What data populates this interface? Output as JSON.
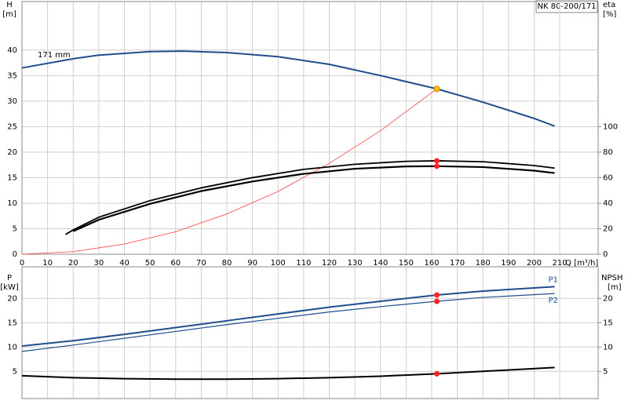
{
  "chart_data": [
    {
      "type": "line",
      "title": "NK 80-200/171",
      "annotation": "171 mm",
      "ylabel": "H",
      "yunit": "[m]",
      "y2label": "eta",
      "y2unit": "[%]",
      "xlabel": "Q [m³/h]",
      "xlim": [
        0,
        225
      ],
      "xticks": [
        0,
        10,
        20,
        30,
        40,
        50,
        60,
        70,
        80,
        90,
        100,
        110,
        120,
        130,
        140,
        150,
        160,
        170,
        180,
        190,
        200,
        210
      ],
      "ylim": [
        0,
        49.5
      ],
      "yticks": [
        0,
        5,
        10,
        15,
        20,
        25,
        30,
        35,
        40
      ],
      "y2lim": [
        0,
        198
      ],
      "y2ticks": [
        0,
        20,
        40,
        60,
        80,
        100
      ],
      "grid": true,
      "xtick_labels": true,
      "series": [
        {
          "color": "#1f4e8c",
          "line_width": 2,
          "axis": "y",
          "x": [
            0,
            20,
            30,
            50,
            63,
            80,
            100,
            120,
            140,
            162,
            180,
            200,
            208
          ],
          "values": [
            36.5,
            38.3,
            39,
            39.7,
            39.8,
            39.5,
            38.7,
            37.2,
            35,
            32.4,
            29.8,
            26.6,
            25.1
          ]
        },
        {
          "color": "#ff4040",
          "line_width": 0.8,
          "axis": "y",
          "x": [
            0,
            20,
            40,
            60,
            80,
            100,
            120,
            140,
            162
          ],
          "values": [
            0,
            0.5,
            2,
            4.4,
            7.9,
            12.3,
            17.8,
            24.2,
            32.4
          ]
        },
        {
          "color": "#000000",
          "line_width": 1.8,
          "axis": "y2",
          "x": [
            17,
            20,
            30,
            50,
            70,
            90,
            110,
            130,
            150,
            162,
            180,
            200,
            208
          ],
          "values": [
            15.5,
            19,
            29,
            42,
            52,
            60,
            66.5,
            70.5,
            72.8,
            73.2,
            72.5,
            69.5,
            67.5
          ]
        },
        {
          "color": "#000000",
          "line_width": 2.2,
          "axis": "y2",
          "x": [
            20,
            30,
            50,
            70,
            90,
            110,
            130,
            150,
            162,
            180,
            200,
            208
          ],
          "values": [
            18,
            27,
            39.5,
            49.5,
            57,
            63,
            67,
            68.8,
            69,
            68.3,
            65.5,
            63.6
          ]
        }
      ],
      "markers": [
        {
          "x": 162,
          "y": 32.4,
          "color": "#f7c300",
          "axis": "y"
        },
        {
          "x": 162,
          "y": 73.2,
          "color": "#ff2020",
          "axis": "y2"
        },
        {
          "x": 162,
          "y": 69,
          "color": "#ff2020",
          "axis": "y2"
        }
      ]
    },
    {
      "type": "line",
      "ylabel": "P",
      "yunit": "[kW]",
      "y2label": "NPSH",
      "y2unit": "[m]",
      "xlim": [
        0,
        225
      ],
      "xticks": [
        0,
        10,
        20,
        30,
        40,
        50,
        60,
        70,
        80,
        90,
        100,
        110,
        120,
        130,
        140,
        150,
        160,
        170,
        180,
        190,
        200,
        210
      ],
      "ylim": [
        -0.6,
        26.5
      ],
      "yticks": [
        5,
        10,
        15,
        20
      ],
      "y2lim": [
        -0.6,
        26.5
      ],
      "y2ticks": [
        5,
        10,
        15,
        20
      ],
      "grid": true,
      "xtick_labels": false,
      "series": [
        {
          "name": "P1",
          "color": "#1f4e8c",
          "line_width": 2,
          "axis": "y",
          "x": [
            0,
            20,
            40,
            60,
            80,
            100,
            120,
            140,
            162,
            180,
            208
          ],
          "values": [
            10.2,
            11.3,
            12.6,
            14,
            15.4,
            16.8,
            18.2,
            19.4,
            20.7,
            21.5,
            22.4
          ]
        },
        {
          "name": "P2",
          "color": "#1f4e8c",
          "line_width": 1.2,
          "axis": "y",
          "x": [
            0,
            20,
            40,
            60,
            80,
            100,
            120,
            140,
            162,
            180,
            208
          ],
          "values": [
            9.1,
            10.4,
            11.8,
            13.2,
            14.6,
            15.9,
            17.2,
            18.3,
            19.4,
            20.2,
            21
          ]
        },
        {
          "color": "#000000",
          "line_width": 2,
          "axis": "y2",
          "x": [
            0,
            20,
            40,
            60,
            80,
            100,
            120,
            140,
            162,
            180,
            208
          ],
          "values": [
            4.1,
            3.7,
            3.5,
            3.4,
            3.4,
            3.5,
            3.7,
            4,
            4.5,
            5,
            5.8
          ]
        }
      ],
      "markers": [
        {
          "x": 162,
          "y": 20.7,
          "color": "#ff2020",
          "axis": "y"
        },
        {
          "x": 162,
          "y": 19.4,
          "color": "#ff2020",
          "axis": "y"
        },
        {
          "x": 162,
          "y": 4.5,
          "color": "#ff2020",
          "axis": "y2"
        }
      ]
    }
  ]
}
